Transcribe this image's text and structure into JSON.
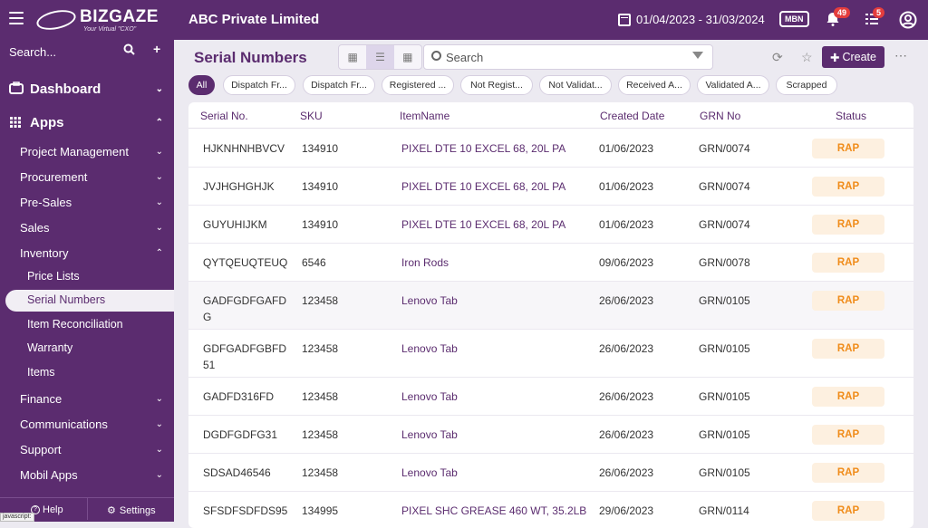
{
  "header": {
    "brand": "BIZGAZE",
    "brand_tagline": "Your Virtual \"CXO\"",
    "company": "ABC Private Limited",
    "date_range": "01/04/2023 - 31/03/2024",
    "branch_code": "MBN",
    "notifications_count": "49",
    "tasks_count": "5"
  },
  "sidebar": {
    "search_label": "Search...",
    "dashboard": "Dashboard",
    "apps": "Apps",
    "modules": [
      {
        "label": "Project Management"
      },
      {
        "label": "Procurement"
      },
      {
        "label": "Pre-Sales"
      },
      {
        "label": "Sales"
      },
      {
        "label": "Inventory"
      }
    ],
    "inventory_items": [
      {
        "label": "Price Lists"
      },
      {
        "label": "Serial Numbers"
      },
      {
        "label": "Item Reconciliation"
      },
      {
        "label": "Warranty"
      },
      {
        "label": "Items"
      }
    ],
    "modules_after": [
      {
        "label": "Finance"
      },
      {
        "label": "Communications"
      },
      {
        "label": "Support"
      },
      {
        "label": "Mobil Apps"
      }
    ],
    "help": "Help",
    "settings": "Settings"
  },
  "page": {
    "title": "Serial Numbers",
    "search_placeholder": "Search",
    "create_label": "Create",
    "filters": [
      {
        "label": "All"
      },
      {
        "label": "Dispatch Fr..."
      },
      {
        "label": "Dispatch Fr..."
      },
      {
        "label": "Registered ..."
      },
      {
        "label": "Not Regist..."
      },
      {
        "label": "Not Validat..."
      },
      {
        "label": "Received A..."
      },
      {
        "label": "Validated A..."
      },
      {
        "label": "Scrapped"
      }
    ]
  },
  "table": {
    "columns": [
      "Serial No.",
      "SKU",
      "ItemName",
      "Created Date",
      "GRN No",
      "Status"
    ],
    "rows": [
      {
        "serial": "HJKNHNHBVCV",
        "serial2": "",
        "sku": "134910",
        "item": "PIXEL DTE 10 EXCEL 68, 20L PA",
        "item2": "",
        "date": "01/06/2023",
        "grn": "GRN/0074",
        "status": "RAP"
      },
      {
        "serial": "JVJHGHGHJK",
        "serial2": "",
        "sku": "134910",
        "item": "PIXEL DTE 10 EXCEL 68, 20L PA",
        "item2": "",
        "date": "01/06/2023",
        "grn": "GRN/0074",
        "status": "RAP"
      },
      {
        "serial": "GUYUHIJKM",
        "serial2": "",
        "sku": "134910",
        "item": "PIXEL DTE 10 EXCEL 68, 20L PA",
        "item2": "",
        "date": "01/06/2023",
        "grn": "GRN/0074",
        "status": "RAP"
      },
      {
        "serial": "QYTQEUQTEUQ",
        "serial2": "",
        "sku": "6546",
        "item": "Iron Rods",
        "item2": "",
        "date": "09/06/2023",
        "grn": "GRN/0078",
        "status": "RAP"
      },
      {
        "serial": "GADFGDFGAFD",
        "serial2": "G",
        "sku": "123458",
        "item": "Lenovo Tab",
        "item2": "",
        "date": "26/06/2023",
        "grn": "GRN/0105",
        "status": "RAP"
      },
      {
        "serial": "GDFGADFGBFD",
        "serial2": "51",
        "sku": "123458",
        "item": "Lenovo Tab",
        "item2": "",
        "date": "26/06/2023",
        "grn": "GRN/0105",
        "status": "RAP"
      },
      {
        "serial": "GADFD316FD",
        "serial2": "",
        "sku": "123458",
        "item": "Lenovo Tab",
        "item2": "",
        "date": "26/06/2023",
        "grn": "GRN/0105",
        "status": "RAP"
      },
      {
        "serial": "DGDFGDFG31",
        "serial2": "",
        "sku": "123458",
        "item": "Lenovo Tab",
        "item2": "",
        "date": "26/06/2023",
        "grn": "GRN/0105",
        "status": "RAP"
      },
      {
        "serial": "SDSAD46546",
        "serial2": "",
        "sku": "123458",
        "item": "Lenovo Tab",
        "item2": "",
        "date": "26/06/2023",
        "grn": "GRN/0105",
        "status": "RAP"
      },
      {
        "serial": "SFSDFSDFDS95",
        "serial2": "",
        "sku": "134995",
        "item": "PIXEL SHC GREASE 460 WT, 35.2LB",
        "item2": "",
        "date": "29/06/2023",
        "grn": "GRN/0114",
        "status": "RAP"
      }
    ]
  },
  "statusbar": "javascript:"
}
